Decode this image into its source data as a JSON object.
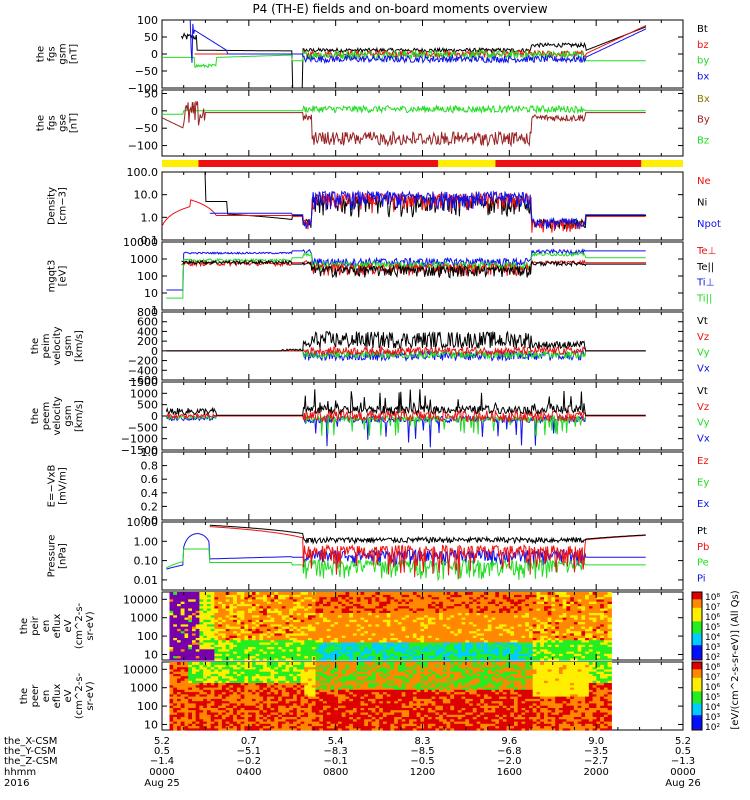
{
  "title": "P4 (TH-E) fields and on-board moments overview",
  "colors": {
    "black": "#000000",
    "red": "#ee1111",
    "green": "#22dd22",
    "blue": "#1111ee",
    "darkred": "#992222",
    "olive": "#887700",
    "yellow": "#ffee00",
    "barred": "#ee1111"
  },
  "chart_data": [
    {
      "type": "line",
      "name": "fgs-gsm",
      "ylabel": [
        "the",
        "fgs",
        "gsm",
        "[nT]"
      ],
      "ylim": [
        -100,
        100
      ],
      "ticks": [
        "100",
        "50",
        "0",
        "−50",
        "−100"
      ],
      "tick_values": [
        100,
        50,
        0,
        -50,
        -100
      ],
      "scale": "linear",
      "legend": [
        {
          "label": "Bt",
          "color": "black"
        },
        {
          "label": "bz",
          "color": "red"
        },
        {
          "label": "by",
          "color": "green"
        },
        {
          "label": "bx",
          "color": "blue"
        }
      ]
    },
    {
      "type": "line",
      "name": "fgs-gse",
      "ylabel": [
        "the",
        "fgs",
        "gse",
        "[nT]"
      ],
      "ylim": [
        -130,
        60
      ],
      "ticks": [
        "50",
        "0",
        "−50",
        "−100"
      ],
      "tick_values": [
        50,
        0,
        -50,
        -100
      ],
      "scale": "linear",
      "legend": [
        {
          "label": "Bx",
          "color": "olive"
        },
        {
          "label": "By",
          "color": "darkred"
        },
        {
          "label": "Bz",
          "color": "green"
        }
      ]
    },
    {
      "type": "line",
      "name": "density",
      "ylabel": [
        "Density",
        "[cm−3]"
      ],
      "ylim": [
        0.1,
        100
      ],
      "ticks": [
        "100.0",
        "10.0",
        "1.0",
        "0.1"
      ],
      "tick_values": [
        100,
        10,
        1,
        0.1
      ],
      "scale": "log",
      "legend": [
        {
          "label": "Ne",
          "color": "red"
        },
        {
          "label": "Ni",
          "color": "black"
        },
        {
          "label": "Npot",
          "color": "blue"
        }
      ]
    },
    {
      "type": "line",
      "name": "temperature",
      "ylabel": [
        "mgqt3",
        "[eV]"
      ],
      "ylim": [
        1,
        10000
      ],
      "ticks": [
        "10000",
        "1000",
        "100",
        "10",
        "1"
      ],
      "tick_values": [
        10000,
        1000,
        100,
        10,
        1
      ],
      "scale": "log",
      "legend": [
        {
          "label": "Te⊥",
          "color": "red"
        },
        {
          "label": "Te||",
          "color": "black"
        },
        {
          "label": "Ti⊥",
          "color": "blue"
        },
        {
          "label": "Ti||",
          "color": "green"
        }
      ]
    },
    {
      "type": "line",
      "name": "peim-velocity",
      "ylabel": [
        "the",
        "peim",
        "velocity",
        "gsm",
        "[km/s]"
      ],
      "ylim": [
        -600,
        800
      ],
      "ticks": [
        "800",
        "600",
        "400",
        "200",
        "0",
        "−200",
        "−400",
        "−600"
      ],
      "tick_values": [
        800,
        600,
        400,
        200,
        0,
        -200,
        -400,
        -600
      ],
      "scale": "linear",
      "legend": [
        {
          "label": "Vt",
          "color": "black"
        },
        {
          "label": "Vz",
          "color": "red"
        },
        {
          "label": "Vy",
          "color": "green"
        },
        {
          "label": "Vx",
          "color": "blue"
        }
      ]
    },
    {
      "type": "line",
      "name": "peem-velocity",
      "ylabel": [
        "the",
        "peem",
        "velocity",
        "gsm",
        "[km/s]"
      ],
      "ylim": [
        -1500,
        1500
      ],
      "ticks": [
        "1500",
        "1000",
        "500",
        "0",
        "−500",
        "−1000",
        "−1500"
      ],
      "tick_values": [
        1500,
        1000,
        500,
        0,
        -500,
        -1000,
        -1500
      ],
      "scale": "linear",
      "legend": [
        {
          "label": "Vt",
          "color": "black"
        },
        {
          "label": "Vz",
          "color": "red"
        },
        {
          "label": "Vy",
          "color": "green"
        },
        {
          "label": "Vx",
          "color": "blue"
        }
      ]
    },
    {
      "type": "line",
      "name": "e-field",
      "ylabel": [
        "E=−VxB",
        "[mV/m]"
      ],
      "ylim": [
        0,
        1
      ],
      "ticks": [
        "1.0",
        "0.8",
        "0.6",
        "0.4",
        "0.2",
        "0.0"
      ],
      "tick_values": [
        1,
        0.8,
        0.6,
        0.4,
        0.2,
        0
      ],
      "scale": "linear",
      "legend": [
        {
          "label": "Ez",
          "color": "red"
        },
        {
          "label": "Ey",
          "color": "green"
        },
        {
          "label": "Ex",
          "color": "blue"
        }
      ]
    },
    {
      "type": "line",
      "name": "pressure",
      "ylabel": [
        "Pressure",
        "[nPa]"
      ],
      "ylim": [
        0.003,
        10
      ],
      "ticks": [
        "10.00",
        "1.00",
        "0.10",
        "0.01"
      ],
      "tick_values": [
        10,
        1,
        0.1,
        0.01
      ],
      "scale": "log",
      "legend": [
        {
          "label": "Pt",
          "color": "black"
        },
        {
          "label": "Pb",
          "color": "red"
        },
        {
          "label": "Pe",
          "color": "green"
        },
        {
          "label": "Pi",
          "color": "blue"
        }
      ]
    },
    {
      "type": "heatmap",
      "name": "peir-spectrogram",
      "ylabel": [
        "the",
        "peir",
        "en",
        "eflux",
        "eV",
        "(cm^2-s-",
        "sr-eV)"
      ],
      "ylim": [
        5,
        25000
      ],
      "ticks": [
        "10000",
        "1000",
        "100",
        "10"
      ],
      "tick_values": [
        10000,
        1000,
        100,
        10
      ],
      "scale": "log",
      "colorbar_ticks": [
        "10⁸",
        "10⁷",
        "10⁶",
        "10⁵",
        "10⁴",
        "10³",
        "10²"
      ],
      "colorbar_range": [
        100,
        100000000
      ]
    },
    {
      "type": "heatmap",
      "name": "peer-spectrogram",
      "ylabel": [
        "the",
        "peer",
        "en",
        "eflux",
        "eV",
        "(cm^2-s-",
        "sr-eV)"
      ],
      "ylim": [
        5,
        25000
      ],
      "ticks": [
        "10000",
        "1000",
        "100",
        "10"
      ],
      "tick_values": [
        10000,
        1000,
        100,
        10
      ],
      "scale": "log",
      "colorbar_ticks": [
        "10⁸",
        "10⁷",
        "10⁶",
        "10⁵",
        "10⁴",
        "10³",
        "10²"
      ],
      "colorbar_range": [
        100,
        100000000
      ]
    }
  ],
  "colorbar_label": "[eV/(cm^2-s-sr-eV)] (All Qs)",
  "mode_bar": {
    "segments": [
      {
        "from": 0,
        "to": 0.07,
        "color": "yellow"
      },
      {
        "from": 0.07,
        "to": 0.53,
        "color": "barred"
      },
      {
        "from": 0.53,
        "to": 0.64,
        "color": "yellow"
      },
      {
        "from": 0.64,
        "to": 0.92,
        "color": "barred"
      },
      {
        "from": 0.92,
        "to": 1,
        "color": "yellow"
      }
    ]
  },
  "xaxis": {
    "row_labels": [
      "the_X-CSM",
      "the_Y-CSM",
      "the_Z-CSM",
      "hhmm",
      "2016"
    ],
    "columns": [
      {
        "hours": 0,
        "x": "5.2",
        "y": "0.5",
        "z": "−1.4",
        "hhmm": "0000",
        "date": "Aug 25"
      },
      {
        "hours": 4,
        "x": "0.7",
        "y": "−5.1",
        "z": "−0.2",
        "hhmm": "0400",
        "date": ""
      },
      {
        "hours": 8,
        "x": "5.4",
        "y": "−8.3",
        "z": "−0.1",
        "hhmm": "0800",
        "date": ""
      },
      {
        "hours": 12,
        "x": "8.3",
        "y": "−8.5",
        "z": "−0.5",
        "hhmm": "1200",
        "date": ""
      },
      {
        "hours": 16,
        "x": "9.6",
        "y": "−6.8",
        "z": "−2.0",
        "hhmm": "1600",
        "date": ""
      },
      {
        "hours": 20,
        "x": "9.0",
        "y": "−3.5",
        "z": "−2.7",
        "hhmm": "2000",
        "date": ""
      },
      {
        "hours": 24,
        "x": "5.2",
        "y": "0.5",
        "z": "−1.3",
        "hhmm": "0000",
        "date": "Aug 26"
      }
    ]
  }
}
